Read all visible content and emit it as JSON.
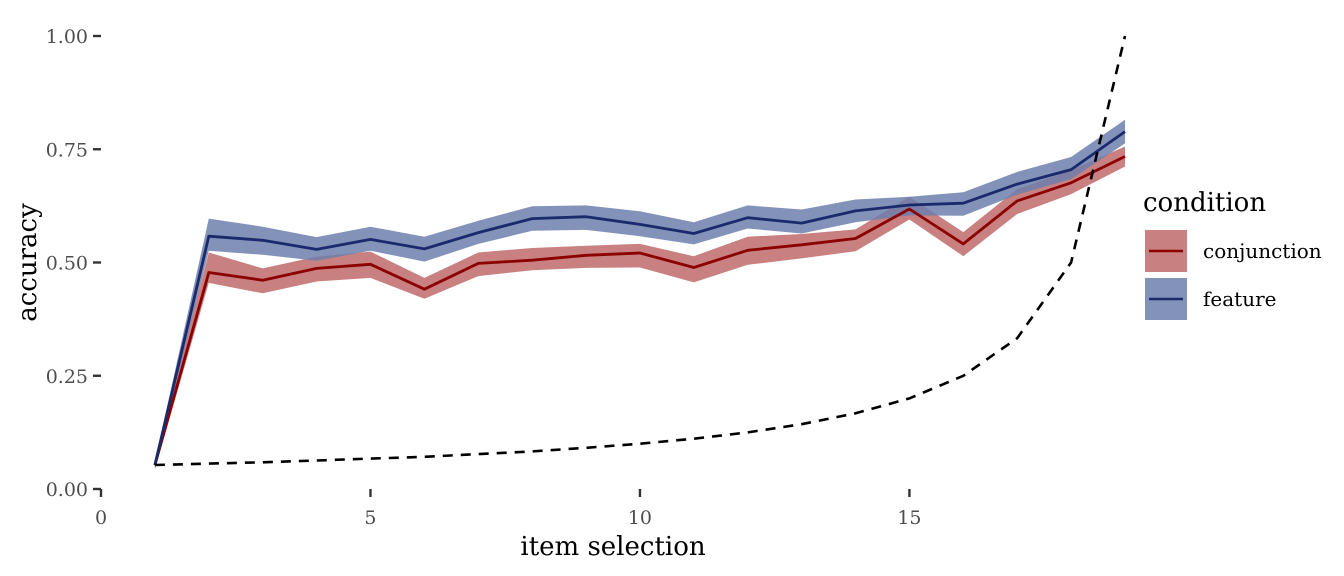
{
  "chart_data": {
    "type": "line",
    "xlabel": "item selection",
    "ylabel": "accuracy",
    "xlim": [
      0,
      19
    ],
    "ylim": [
      0,
      1
    ],
    "xticks": [
      0,
      5,
      10,
      15
    ],
    "yticks": [
      0.0,
      0.25,
      0.5,
      0.75,
      1.0
    ],
    "ytick_labels": [
      "0.00",
      "0.25",
      "0.50",
      "0.75",
      "1.00"
    ],
    "grid": false,
    "legend": {
      "title": "condition",
      "placement": "right"
    },
    "x": [
      1,
      2,
      3,
      4,
      5,
      6,
      7,
      8,
      9,
      10,
      11,
      12,
      13,
      14,
      15,
      16,
      17,
      18,
      19
    ],
    "series": [
      {
        "name": "conjunction",
        "color": "#8b0000",
        "band_color": "#c06a6a",
        "values": [
          0.053,
          0.478,
          0.461,
          0.487,
          0.496,
          0.441,
          0.498,
          0.505,
          0.516,
          0.521,
          0.489,
          0.527,
          0.539,
          0.553,
          0.618,
          0.541,
          0.636,
          0.676,
          0.734
        ],
        "lower": [
          0.043,
          0.455,
          0.432,
          0.458,
          0.466,
          0.42,
          0.47,
          0.483,
          0.488,
          0.489,
          0.456,
          0.495,
          0.509,
          0.525,
          0.595,
          0.514,
          0.607,
          0.651,
          0.712
        ],
        "upper": [
          0.061,
          0.522,
          0.487,
          0.513,
          0.524,
          0.466,
          0.522,
          0.532,
          0.537,
          0.541,
          0.514,
          0.557,
          0.563,
          0.573,
          0.645,
          0.567,
          0.662,
          0.704,
          0.756
        ]
      },
      {
        "name": "feature",
        "color": "#1a2a6c",
        "band_color": "#6d7fab",
        "values": [
          0.053,
          0.558,
          0.549,
          0.529,
          0.551,
          0.53,
          0.566,
          0.597,
          0.601,
          0.584,
          0.564,
          0.599,
          0.587,
          0.614,
          0.627,
          0.631,
          0.673,
          0.705,
          0.789
        ],
        "lower": [
          0.043,
          0.526,
          0.517,
          0.504,
          0.526,
          0.502,
          0.541,
          0.57,
          0.572,
          0.558,
          0.54,
          0.575,
          0.564,
          0.589,
          0.604,
          0.603,
          0.65,
          0.684,
          0.763
        ],
        "upper": [
          0.061,
          0.597,
          0.579,
          0.556,
          0.579,
          0.557,
          0.592,
          0.624,
          0.626,
          0.613,
          0.589,
          0.626,
          0.617,
          0.639,
          0.645,
          0.655,
          0.7,
          0.733,
          0.815
        ]
      },
      {
        "name": "",
        "style": "dashed",
        "color": "#000000",
        "values": [
          0.053,
          0.056,
          0.059,
          0.063,
          0.067,
          0.071,
          0.077,
          0.083,
          0.091,
          0.1,
          0.111,
          0.125,
          0.143,
          0.167,
          0.2,
          0.25,
          0.333,
          0.5,
          1.0
        ]
      }
    ]
  }
}
